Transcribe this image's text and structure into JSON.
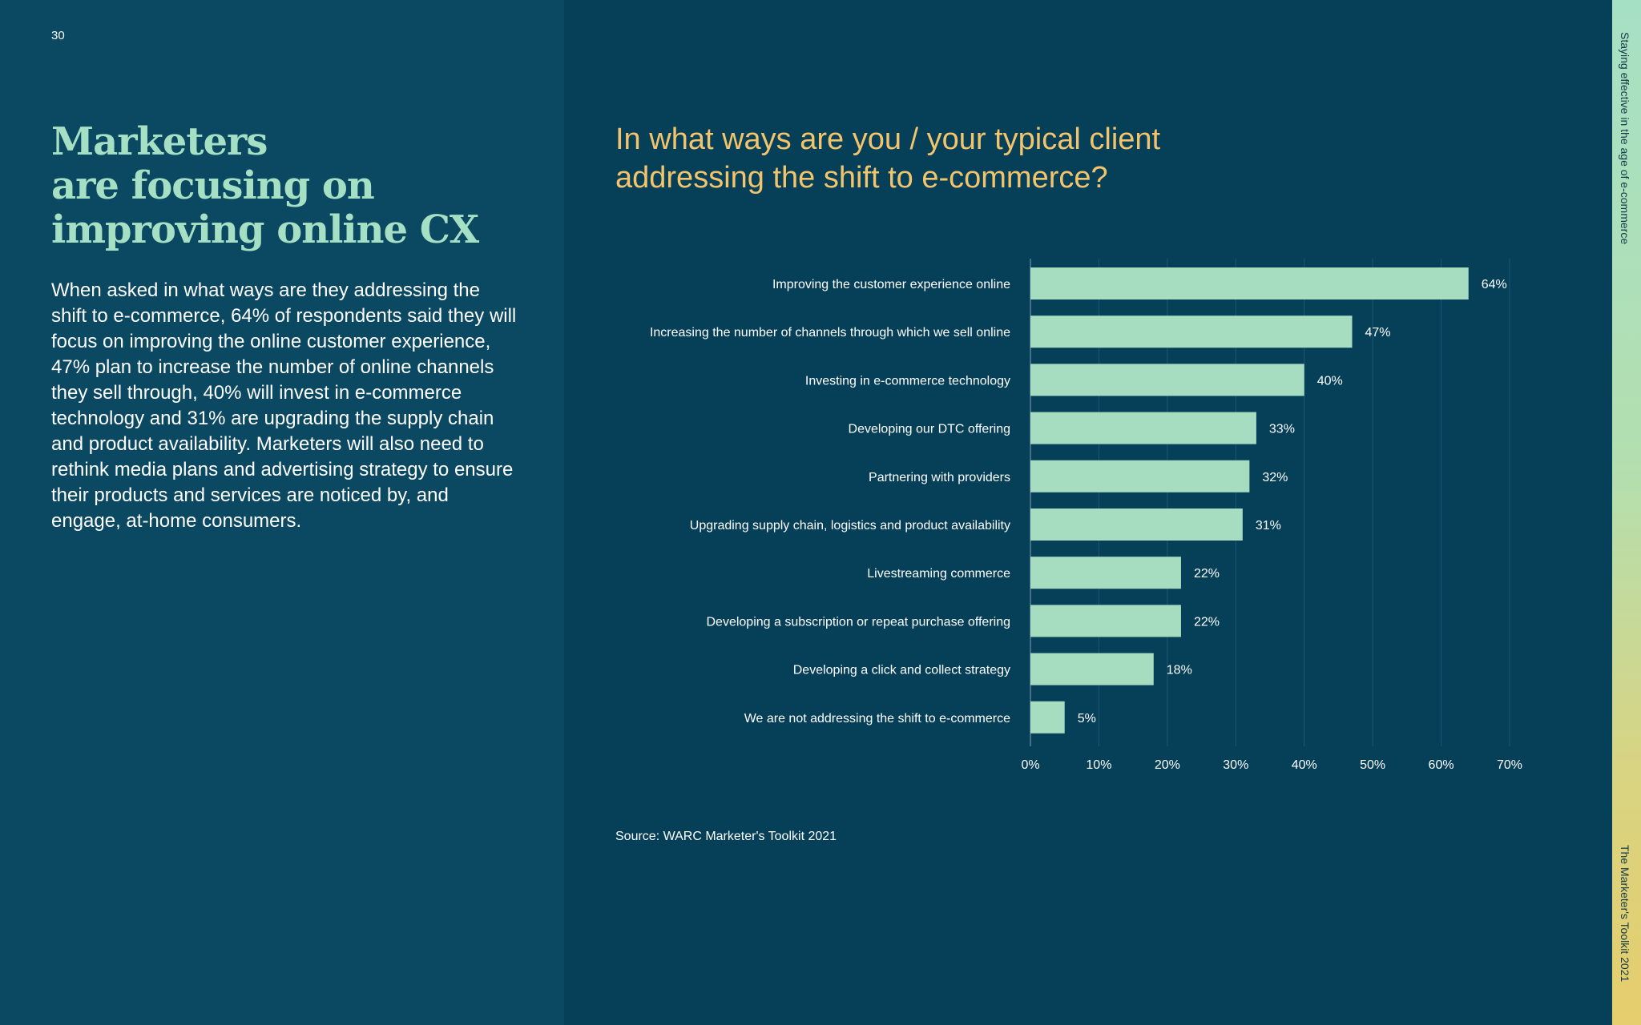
{
  "page": {
    "number": "30",
    "side_top": "Staying effective in the age of e-commerce",
    "side_bottom": "The Marketer's Toolkit 2021"
  },
  "left": {
    "headline": "Marketers\nare focusing on\nimproving online CX",
    "body": "When asked in what ways are they addressing the shift to e-commerce, 64% of respondents said they will focus on improving the online customer experience, 47% plan to increase the number of online channels they sell through, 40% will invest in e-commerce technology and 31% are upgrading the supply chain and product availability. Marketers will also need to rethink media plans and advertising strategy to ensure their products and services are noticed by, and engage, at-home consumers."
  },
  "source": "Source: WARC Marketer's Toolkit 2021",
  "colors": {
    "bar": "#a6dcc0",
    "title": "#f3c46c",
    "headline": "#a6e0c4",
    "text": "#ffffff",
    "grid": "#1f5670"
  },
  "chart_data": {
    "type": "bar",
    "orientation": "horizontal",
    "title": "In what ways are you / your typical client\naddressing the shift to e-commerce?",
    "xlabel": "",
    "ylabel": "",
    "categories": [
      "Improving the customer experience online",
      "Increasing the number of channels through which we sell online",
      "Investing in e-commerce technology",
      "Developing our DTC offering",
      "Partnering with providers",
      "Upgrading supply chain, logistics and product availability",
      "Livestreaming commerce",
      "Developing a subscription or repeat purchase offering",
      "Developing a click and collect strategy",
      "We are not addressing the shift to e-commerce"
    ],
    "values": [
      64,
      47,
      40,
      33,
      32,
      31,
      22,
      22,
      18,
      5
    ],
    "value_labels": [
      "64%",
      "47%",
      "40%",
      "33%",
      "32%",
      "31%",
      "22%",
      "22%",
      "18%",
      "5%"
    ],
    "xlim": [
      0,
      70
    ],
    "xticks": [
      0,
      10,
      20,
      30,
      40,
      50,
      60,
      70
    ],
    "xtick_labels": [
      "0%",
      "10%",
      "20%",
      "30%",
      "40%",
      "50%",
      "60%",
      "70%"
    ],
    "grid": true,
    "legend": "none"
  }
}
